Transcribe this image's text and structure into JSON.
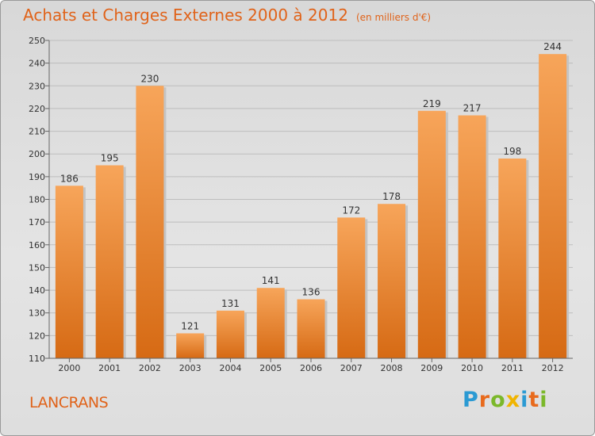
{
  "header": {
    "title": "Achats et Charges Externes 2000 à 2012",
    "subtitle": "(en milliers d'€)"
  },
  "footer": {
    "commune": "LANCRANS",
    "logo": "Proxiti"
  },
  "colors": {
    "accent": "#e0631a",
    "bar_top": "#f7a55a",
    "bar_bottom": "#d66a14"
  },
  "chart_data": {
    "type": "bar",
    "title": "Achats et Charges Externes 2000 à 2012",
    "subtitle": "(en milliers d'€)",
    "categories": [
      "2000",
      "2001",
      "2002",
      "2003",
      "2004",
      "2005",
      "2006",
      "2007",
      "2008",
      "2009",
      "2010",
      "2011",
      "2012"
    ],
    "values": [
      186,
      195,
      230,
      121,
      131,
      141,
      136,
      172,
      178,
      219,
      217,
      198,
      244
    ],
    "ylim": [
      110,
      250
    ],
    "yticks": [
      110,
      120,
      130,
      140,
      150,
      160,
      170,
      180,
      190,
      200,
      210,
      220,
      230,
      240,
      250
    ],
    "grid": true,
    "legend": "none"
  }
}
